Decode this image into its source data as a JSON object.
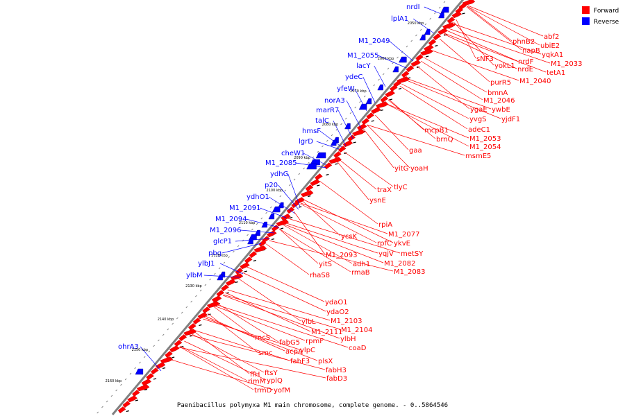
{
  "caption": "Paenibacillus polymyxa M1 main chromosome, complete genome. - 0..5864546",
  "legend": [
    {
      "label": "Forward",
      "color": "#ff0000"
    },
    {
      "label": "Reverse",
      "color": "#0000ff"
    }
  ],
  "kbp_ticks": [
    "2050 kbp",
    "2060 kbp",
    "2070 kbp",
    "2080 kbp",
    "2090 kbp",
    "2100 kbp",
    "2110 kbp",
    "2120 kbp",
    "2130 kbp",
    "2140 kbp",
    "2150 kbp",
    "2160 kbp"
  ],
  "reverse_genes": [
    "nrdI",
    "lplA1",
    "M1_2049",
    "M1_2055",
    "lacY",
    "ydeC",
    "yfeW",
    "norA3",
    "marR7",
    "talC",
    "hmsF",
    "lgrD",
    "cheW1",
    "M1_2085",
    "ydhG",
    "p20",
    "ydhO1",
    "M1_2091",
    "M1_2094",
    "M1_2096",
    "glcP1",
    "pbg",
    "ylbJ1",
    "ylbM",
    "ohrA3"
  ],
  "forward_genes": [
    "abf2",
    "phnB2",
    "ubiE2",
    "napB",
    "yqkA1",
    "M1_2033",
    "sNF3",
    "yokL1",
    "nrdF",
    "nrdE",
    "tetA1",
    "purR5",
    "M1_2040",
    "bmnA",
    "M1_2046",
    "ygaE",
    "ywbE",
    "yvgS",
    "yjdF1",
    "adeC1",
    "mcpB1",
    "M1_2053",
    "brnQ",
    "M1_2054",
    "msmE5",
    "gaa",
    "yitG",
    "yoaH",
    "traX",
    "tlyC",
    "ysnE",
    "rpiA",
    "M1_2077",
    "ycsK",
    "rpfC",
    "ykvE",
    "yqjV",
    "metSY",
    "M1_2082",
    "M1_2093",
    "M1_2083",
    "yitS",
    "adh1",
    "rmaB",
    "rhaS8",
    "ydaO1",
    "ydaO2",
    "ylbL",
    "M1_2103",
    "M1_2104",
    "M1_2111",
    "ylbH",
    "rncS",
    "rpmF",
    "fabG5",
    "coaD",
    "ylpC",
    "acpA",
    "smc",
    "plsX",
    "fabF3",
    "fabH3",
    "ftsY",
    "ffH",
    "fabD3",
    "rimM",
    "yplQ",
    "trmD",
    "yofM"
  ]
}
